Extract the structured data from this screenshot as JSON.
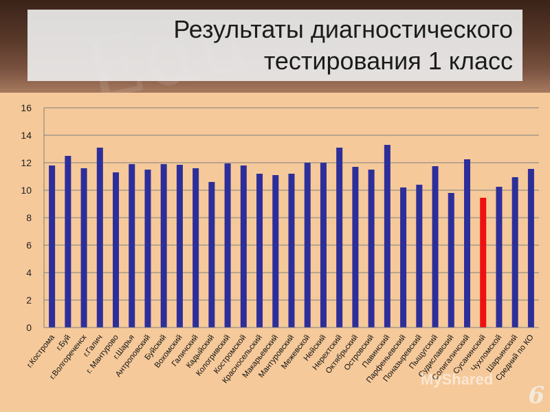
{
  "title": {
    "line1": "Результаты диагностического",
    "line2": "тестирования 1 класс"
  },
  "watermark": "MyShared",
  "page_number": "6",
  "colors": {
    "bar": "#2e2e9a",
    "highlight": "#ee1111",
    "background": "#f5c99a",
    "grid": "#7f7f7f"
  },
  "chart_data": {
    "type": "bar",
    "categories": [
      "г.Кострома",
      "г.Буй",
      "г.Волгореченск",
      "г.Галич",
      "г. Мантурово",
      "г.Шарья",
      "Антроповский",
      "Буйский",
      "Вохомский",
      "Галичский",
      "Кадыйский",
      "Кологривский",
      "Костромской",
      "Красносельский",
      "Макарьевский",
      "Мантуровский",
      "Межевской",
      "Нейский",
      "Нерехтский",
      "Октябрьский",
      "Островский",
      "Павинский",
      "Парфеньевский",
      "Поназыревский",
      "Пыщугский",
      "Судиславский",
      "Солигаличский",
      "Сусанинский",
      "Чухломской",
      "Шарьинский",
      "Средний по КО"
    ],
    "values": [
      11.8,
      12.5,
      11.6,
      13.1,
      11.3,
      11.9,
      11.5,
      11.9,
      11.85,
      11.6,
      10.6,
      11.95,
      11.8,
      11.2,
      11.1,
      11.2,
      12.0,
      12.0,
      13.1,
      11.7,
      11.5,
      13.3,
      10.2,
      10.4,
      11.75,
      9.8,
      12.25,
      9.45,
      10.25,
      10.95,
      11.55
    ],
    "highlight_index": 27,
    "ylim": [
      0,
      16
    ],
    "yticks": [
      0,
      2,
      4,
      6,
      8,
      10,
      12,
      14,
      16
    ],
    "grid": true,
    "title": "",
    "xlabel": "",
    "ylabel": ""
  }
}
